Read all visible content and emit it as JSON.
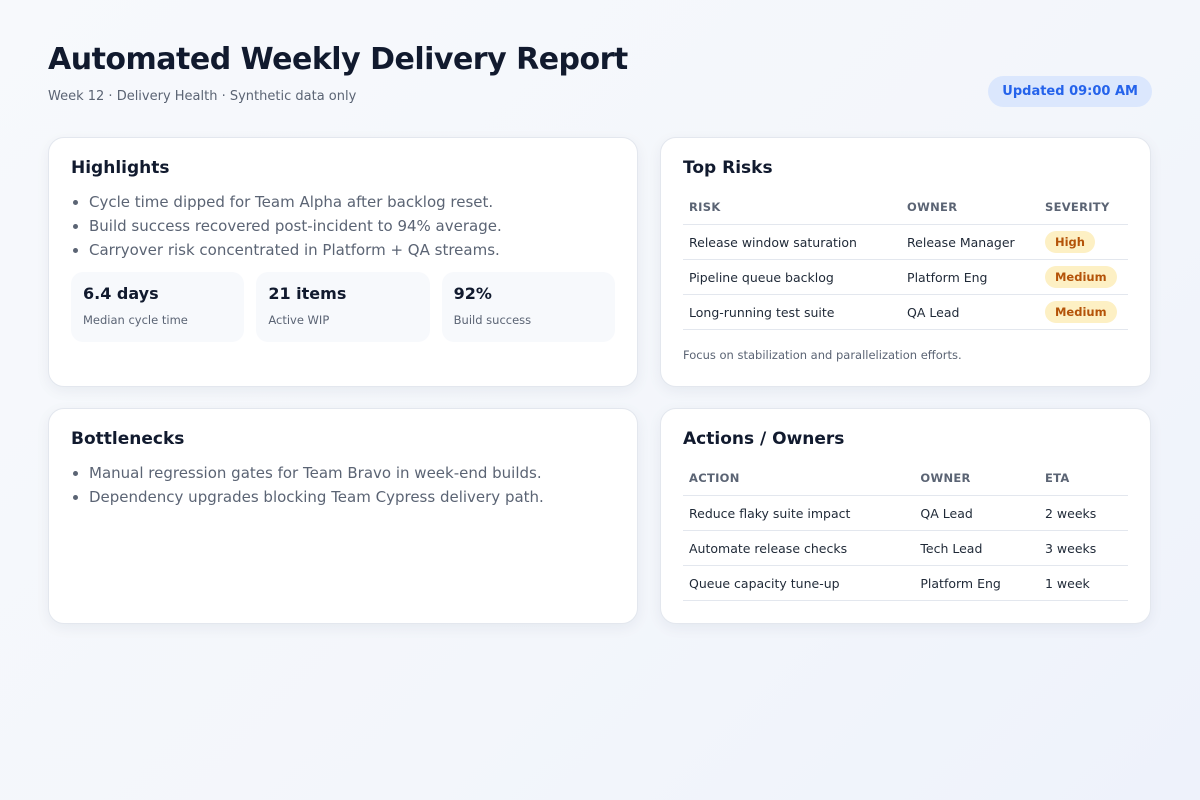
{
  "header": {
    "title": "Automated Weekly Delivery Report",
    "subtitle": "Week 12 · Delivery Health · Synthetic data only",
    "updated": "Updated 09:00 AM"
  },
  "highlights": {
    "title": "Highlights",
    "items": [
      "Cycle time dipped for Team Alpha after backlog reset.",
      "Build success recovered post-incident to 94% average.",
      "Carryover risk concentrated in Platform + QA streams."
    ],
    "metrics": [
      {
        "value": "6.4 days",
        "label": "Median cycle time"
      },
      {
        "value": "21 items",
        "label": "Active WIP"
      },
      {
        "value": "92%",
        "label": "Build success"
      }
    ]
  },
  "risks": {
    "title": "Top Risks",
    "columns": [
      "RISK",
      "OWNER",
      "SEVERITY"
    ],
    "rows": [
      [
        "Release window saturation",
        "Release Manager",
        "High"
      ],
      [
        "Pipeline queue backlog",
        "Platform Eng",
        "Medium"
      ],
      [
        "Long-running test suite",
        "QA Lead",
        "Medium"
      ]
    ],
    "note": "Focus on stabilization and parallelization efforts.",
    "severity_color": "#b45309",
    "severity_bg": "#fdf0c4"
  },
  "bottlenecks": {
    "title": "Bottlenecks",
    "items": [
      "Manual regression gates for Team Bravo in week-end builds.",
      "Dependency upgrades blocking Team Cypress delivery path."
    ]
  },
  "actions": {
    "title": "Actions / Owners",
    "columns": [
      "ACTION",
      "OWNER",
      "ETA"
    ],
    "rows": [
      [
        "Reduce flaky suite impact",
        "QA Lead",
        "2 weeks"
      ],
      [
        "Automate release checks",
        "Tech Lead",
        "3 weeks"
      ],
      [
        "Queue capacity tune-up",
        "Platform Eng",
        "1 week"
      ]
    ]
  }
}
